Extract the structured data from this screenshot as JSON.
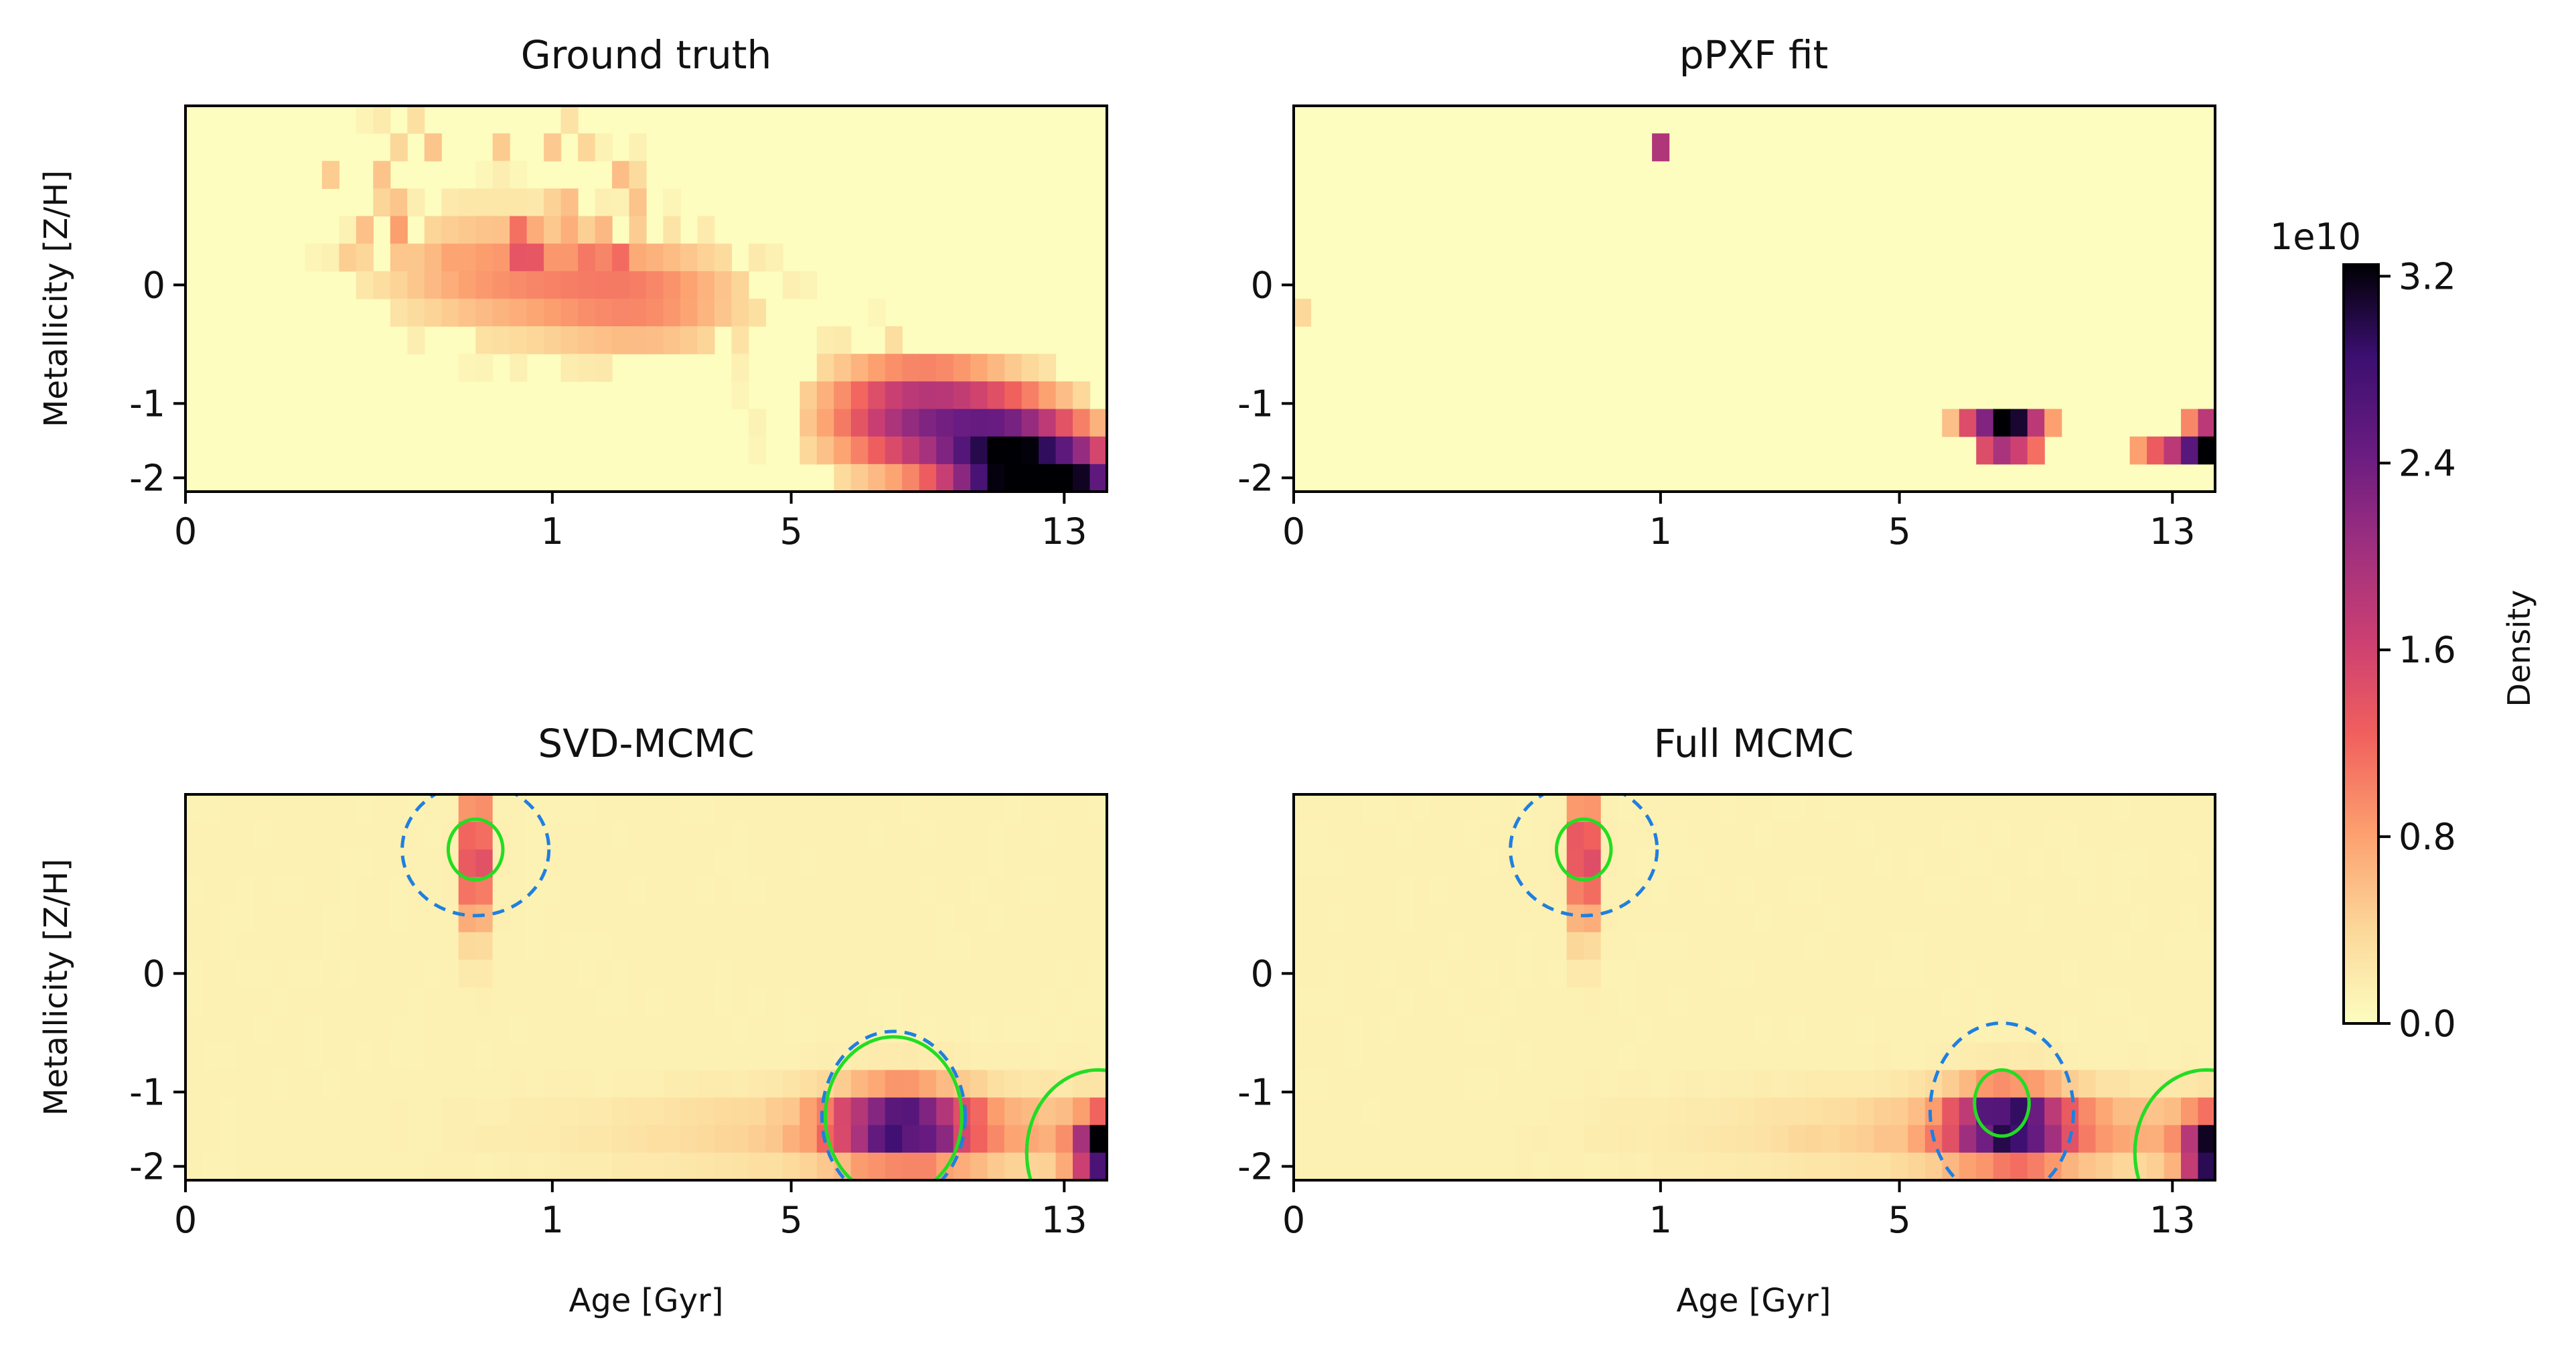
{
  "chart_data": [
    {
      "type": "heatmap",
      "title": "Ground truth",
      "xlabel": "",
      "ylabel": "Metallicity [Z/H]",
      "x_scale": "age-bins (log-like)",
      "xticks": [
        "0",
        "1",
        "5",
        "13"
      ],
      "yticks": [
        "0",
        "-1",
        "-2"
      ],
      "grid": false,
      "blobs": [
        {
          "age_bin": 17.5,
          "z_bin": 5.5,
          "peak": 0.25,
          "sx": 5.0,
          "sy": 1.6
        },
        {
          "age_bin": 26.5,
          "z_bin": 6.5,
          "peak": 0.28,
          "sx": 4.5,
          "sy": 1.5
        },
        {
          "age_bin": 42.5,
          "z_bin": 10.8,
          "peak": 0.62,
          "sx": 4.0,
          "sy": 1.5
        },
        {
          "age_bin": 48.5,
          "z_bin": 12.8,
          "peak": 1.0,
          "sx": 3.0,
          "sy": 1.5
        },
        {
          "age_bin": 52.5,
          "z_bin": 13.6,
          "peak": 0.55,
          "sx": 1.6,
          "sy": 1.1
        }
      ],
      "noise_band": {
        "from_age": 8,
        "to_age": 26,
        "peak": 0.18
      }
    },
    {
      "type": "heatmap",
      "title": "pPXF fit",
      "xlabel": "",
      "ylabel": "",
      "xticks": [
        "0",
        "1",
        "5",
        "13"
      ],
      "yticks": [
        "0",
        "-1",
        "-2"
      ],
      "grid": false,
      "cells": [
        {
          "age_bin": 21,
          "z_bin": 1,
          "value": 0.58
        },
        {
          "age_bin": 0,
          "z_bin": 7,
          "value": 0.12
        },
        {
          "age_bin": 38,
          "z_bin": 11,
          "value": 0.18
        },
        {
          "age_bin": 39,
          "z_bin": 11,
          "value": 0.45
        },
        {
          "age_bin": 40,
          "z_bin": 11,
          "value": 0.7
        },
        {
          "age_bin": 41,
          "z_bin": 11,
          "value": 1.0
        },
        {
          "age_bin": 42,
          "z_bin": 11,
          "value": 0.95
        },
        {
          "age_bin": 43,
          "z_bin": 11,
          "value": 0.55
        },
        {
          "age_bin": 44,
          "z_bin": 11,
          "value": 0.25
        },
        {
          "age_bin": 40,
          "z_bin": 12,
          "value": 0.45
        },
        {
          "age_bin": 41,
          "z_bin": 12,
          "value": 0.6
        },
        {
          "age_bin": 42,
          "z_bin": 12,
          "value": 0.5
        },
        {
          "age_bin": 43,
          "z_bin": 12,
          "value": 0.35
        },
        {
          "age_bin": 52,
          "z_bin": 11,
          "value": 0.3
        },
        {
          "age_bin": 53,
          "z_bin": 11,
          "value": 0.55
        },
        {
          "age_bin": 49,
          "z_bin": 12,
          "value": 0.25
        },
        {
          "age_bin": 50,
          "z_bin": 12,
          "value": 0.4
        },
        {
          "age_bin": 51,
          "z_bin": 12,
          "value": 0.55
        },
        {
          "age_bin": 52,
          "z_bin": 12,
          "value": 0.8
        },
        {
          "age_bin": 53,
          "z_bin": 12,
          "value": 1.0
        }
      ]
    },
    {
      "type": "heatmap",
      "title": "SVD-MCMC",
      "xlabel": "Age [Gyr]",
      "ylabel": "Metallicity [Z/H]",
      "xticks": [
        "0",
        "1",
        "5",
        "13"
      ],
      "yticks": [
        "0",
        "-1",
        "-2"
      ],
      "grid": false,
      "background": 0.04,
      "blobs": [
        {
          "age_bin": 16.5,
          "z_bin": 1.8,
          "peak": 0.62,
          "sx": 0.5,
          "sy": 1.8
        },
        {
          "age_bin": 41.5,
          "z_bin": 11.5,
          "peak": 0.75,
          "sx": 2.8,
          "sy": 0.9
        },
        {
          "age_bin": 53.5,
          "z_bin": 12.5,
          "peak": 1.0,
          "sx": 1.2,
          "sy": 0.9
        },
        {
          "age_bin": 45.0,
          "z_bin": 11.8,
          "peak": 0.18,
          "sx": 12.0,
          "sy": 1.0
        }
      ],
      "contours": [
        {
          "cx": 17,
          "cy": 2.0,
          "rx": 4.3,
          "ry": 2.4,
          "style": "dashed"
        },
        {
          "cx": 17,
          "cy": 2.0,
          "rx": 1.6,
          "ry": 1.1,
          "style": "solid"
        },
        {
          "cx": 41.5,
          "cy": 11.7,
          "rx": 4.2,
          "ry": 3.1,
          "style": "dashed"
        },
        {
          "cx": 41.5,
          "cy": 11.7,
          "rx": 4.0,
          "ry": 2.9,
          "style": "solid"
        },
        {
          "cx": 53.5,
          "cy": 13.0,
          "rx": 4.2,
          "ry": 3.0,
          "style": "dashed"
        },
        {
          "cx": 53.5,
          "cy": 13.0,
          "rx": 4.2,
          "ry": 3.0,
          "style": "solid"
        }
      ]
    },
    {
      "type": "heatmap",
      "title": "Full MCMC",
      "xlabel": "Age [Gyr]",
      "ylabel": "",
      "xticks": [
        "0",
        "1",
        "5",
        "13"
      ],
      "yticks": [
        "0",
        "-1",
        "-2"
      ],
      "grid": false,
      "background": 0.04,
      "blobs": [
        {
          "age_bin": 16.5,
          "z_bin": 1.8,
          "peak": 0.62,
          "sx": 0.5,
          "sy": 1.8
        },
        {
          "age_bin": 41.5,
          "z_bin": 11.5,
          "peak": 0.85,
          "sx": 2.4,
          "sy": 0.9
        },
        {
          "age_bin": 53.5,
          "z_bin": 12.5,
          "peak": 1.0,
          "sx": 1.2,
          "sy": 0.9
        },
        {
          "age_bin": 45.0,
          "z_bin": 11.8,
          "peak": 0.18,
          "sx": 12.0,
          "sy": 1.0
        }
      ],
      "contours": [
        {
          "cx": 17,
          "cy": 2.0,
          "rx": 4.3,
          "ry": 2.4,
          "style": "dashed"
        },
        {
          "cx": 17,
          "cy": 2.0,
          "rx": 1.6,
          "ry": 1.1,
          "style": "solid"
        },
        {
          "cx": 41.5,
          "cy": 11.5,
          "rx": 4.2,
          "ry": 3.2,
          "style": "dashed"
        },
        {
          "cx": 41.5,
          "cy": 11.2,
          "rx": 1.6,
          "ry": 1.2,
          "style": "solid"
        },
        {
          "cx": 53.5,
          "cy": 13.0,
          "rx": 4.2,
          "ry": 3.0,
          "style": "dashed"
        },
        {
          "cx": 53.5,
          "cy": 13.0,
          "rx": 4.2,
          "ry": 3.0,
          "style": "solid"
        }
      ]
    }
  ],
  "grid_shape": {
    "age_bins": 54,
    "z_bins": 14
  },
  "colorbar": {
    "label": "Density",
    "multiplier": "1e10",
    "ticks": [
      "0.0",
      "0.8",
      "1.6",
      "2.4",
      "3.2"
    ],
    "tick_values": [
      0,
      0.8,
      1.6,
      2.4,
      3.2
    ],
    "vmax": 3.25,
    "colormap": "magma_r"
  },
  "colors": {
    "contour_dashed": "#1f7fe0",
    "contour_solid": "#22dd22",
    "frame": "#000000"
  }
}
